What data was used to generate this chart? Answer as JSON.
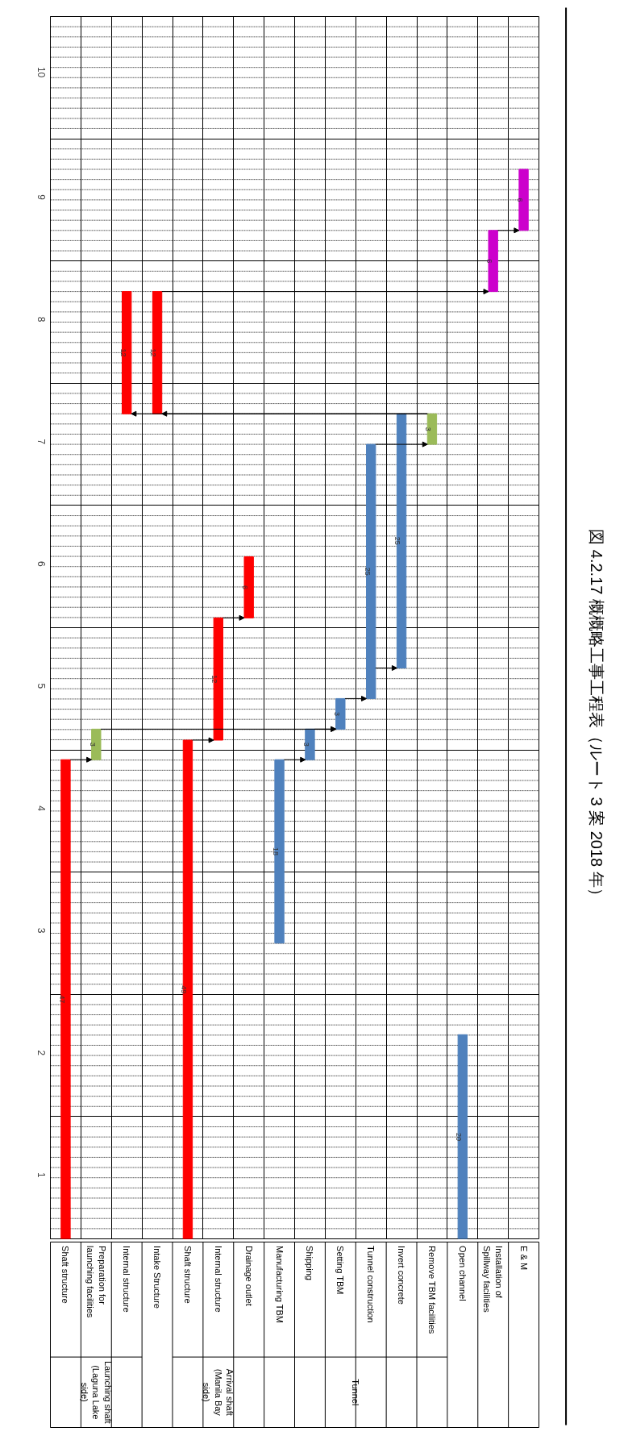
{
  "chart_data": {
    "type": "bar",
    "title": "図 4.2.17 概概略工事工程表（ルート 3 案 2018 年）",
    "categories": [
      "Shaft structure",
      "Preparation for launching facilities",
      "Internal structure",
      "Intake Structure",
      "Shaft structure",
      "Internal structure",
      "Drainage outlet",
      "Manufacturing TBM",
      "Shipping",
      "Setting TBM",
      "Tunnel construction",
      "Invert concrete",
      "Remove TBM facilities",
      "Open channel",
      "Installation of Spillway facilities",
      "E & M"
    ],
    "base": [
      0.5,
      4.42,
      7.25,
      7.25,
      0.5,
      4.58,
      5.58,
      2.92,
      4.42,
      4.67,
      4.92,
      5.17,
      7.0,
      0.5,
      8.25,
      8.75
    ],
    "values": [
      3.92,
      0.25,
      1,
      1,
      4.08,
      1,
      0.5,
      1.5,
      0.25,
      0.25,
      2.08,
      2.08,
      0.25,
      1.67,
      0.5,
      0.5
    ],
    "colors": [
      "#ff0000",
      "#9bbb59",
      "#ff0000",
      "#ff0000",
      "#ff0000",
      "#ff0000",
      "#ff0000",
      "#4f81bd",
      "#4f81bd",
      "#4f81bd",
      "#4f81bd",
      "#4f81bd",
      "#9bbb59",
      "#4f81bd",
      "#cc00cc",
      "#cc00cc"
    ],
    "ylim": [
      0.5,
      10.5
    ],
    "yticks": [
      {
        "value": 0.5,
        "label": null
      },
      1,
      {
        "value": 1.5,
        "label": null
      },
      2,
      {
        "value": 2.5,
        "label": null
      },
      3,
      {
        "value": 3.5,
        "label": null
      },
      4,
      {
        "value": 4.5,
        "label": null
      },
      5,
      {
        "value": 5.5,
        "label": null
      },
      6,
      {
        "value": 6.5,
        "label": null
      },
      7,
      {
        "value": 7.5,
        "label": null
      },
      8,
      {
        "value": 8.5,
        "label": null
      },
      9,
      {
        "value": 9.5,
        "label": null
      },
      10,
      {
        "value": 10.5,
        "label": null
      }
    ],
    "grid": true,
    "annotations": [
      "47",
      "3",
      "12",
      "12",
      "49",
      "12",
      "6",
      "18",
      "3",
      "3",
      "25",
      "25",
      "3",
      "20",
      "6",
      "6",
      "Launching shaft (Laguna Lake side)",
      "Arrival shaft (Manila Bay side)",
      "Tunnel"
    ]
  }
}
